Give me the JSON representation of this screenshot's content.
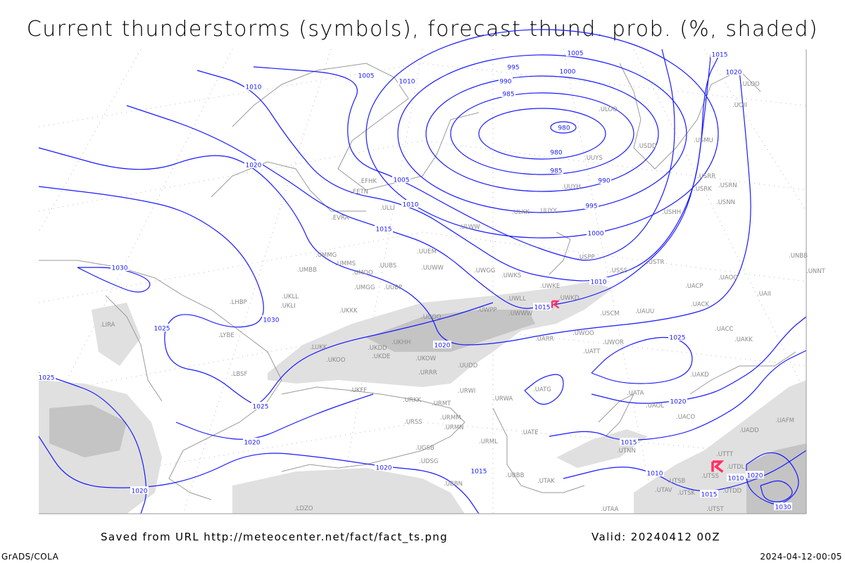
{
  "title": "Current thunderstorms (symbols), forecast thund. prob. (%, shaded)",
  "footer": {
    "source": "Saved from URL http://meteocenter.net/fact/fact_ts.png",
    "valid": "Valid: 20240412 00Z",
    "software": "GrADS/COLA",
    "generated": "2024-04-12-00:05"
  },
  "colors": {
    "isobar": "#1a1aff",
    "coastline": "#9a9a9a",
    "shade_light": "#e0e0e0",
    "shade_dark": "#c4c4c4",
    "thunderstorm_symbol": "#ff3366",
    "station_label": "#8a8a8a"
  },
  "isobar_labels": [
    "1005",
    "1000",
    "995",
    "990",
    "985",
    "980",
    "980",
    "985",
    "990",
    "995",
    "1000",
    "1005",
    "1010",
    "1015",
    "1020",
    "1010",
    "1020",
    "1005",
    "1010",
    "1015",
    "1020",
    "1030",
    "1030",
    "1025",
    "1025",
    "1025",
    "1025",
    "1020",
    "1020",
    "1020",
    "1015",
    "1015",
    "1020",
    "1010",
    "1010",
    "1015",
    "1020",
    "1030",
    "1010",
    "1015"
  ],
  "stations": [
    "ULOO",
    "UOII",
    "USMU",
    "ULOO",
    "USDD",
    "UUYS",
    "UUYH",
    "ULKK",
    "UUYY",
    "ULWW",
    "USRR",
    "USRK",
    "USRN",
    "USNN",
    "USHH",
    "EFHK",
    "EETN",
    "ULLI",
    "EVRA",
    "UUEM",
    "UMMG",
    "UMMS",
    "UMOO",
    "UUBS",
    "UUWW",
    "UWGG",
    "UWKS",
    "USPP",
    "USSS",
    "USTR",
    "UMBB",
    "UKLL",
    "UKLI",
    "UMGG",
    "UUBP",
    "UKKK",
    "UUOO",
    "UWPP",
    "UWLL",
    "UWKE",
    "UWKD",
    "UWWW",
    "USCM",
    "UAUU",
    "UACC",
    "UAKK",
    "UAKD",
    "UAII",
    "UKHH",
    "UKDD",
    "UKDE",
    "UKOW",
    "URRR",
    "URWI",
    "URWA",
    "UATG",
    "UATA",
    "UAOL",
    "UACO",
    "UATE",
    "URML",
    "UBBB",
    "UTAK",
    "UGSB",
    "UDSG",
    "UBBN",
    "UTNN",
    "UADD",
    "UAFM",
    "UTTT",
    "UTDL",
    "UTSS",
    "UTSB",
    "UTAV",
    "UTSK",
    "UTDD",
    "UTST",
    "UTAA",
    "LUKK",
    "UKOO",
    "URKK",
    "URMT",
    "URMM",
    "URMN",
    "URSS",
    "LBSF",
    "LIRA",
    "LYBE",
    "LHBP",
    "LDZO",
    "UKFF",
    "UUDD",
    "UARR",
    "UWOO",
    "UATT",
    "UWOR",
    "UNBB",
    "UNNT",
    "UACP",
    "UACK",
    "UAOO"
  ],
  "thunderstorms": [
    {
      "near": "UWKD"
    },
    {
      "near": "UTDL"
    }
  ]
}
